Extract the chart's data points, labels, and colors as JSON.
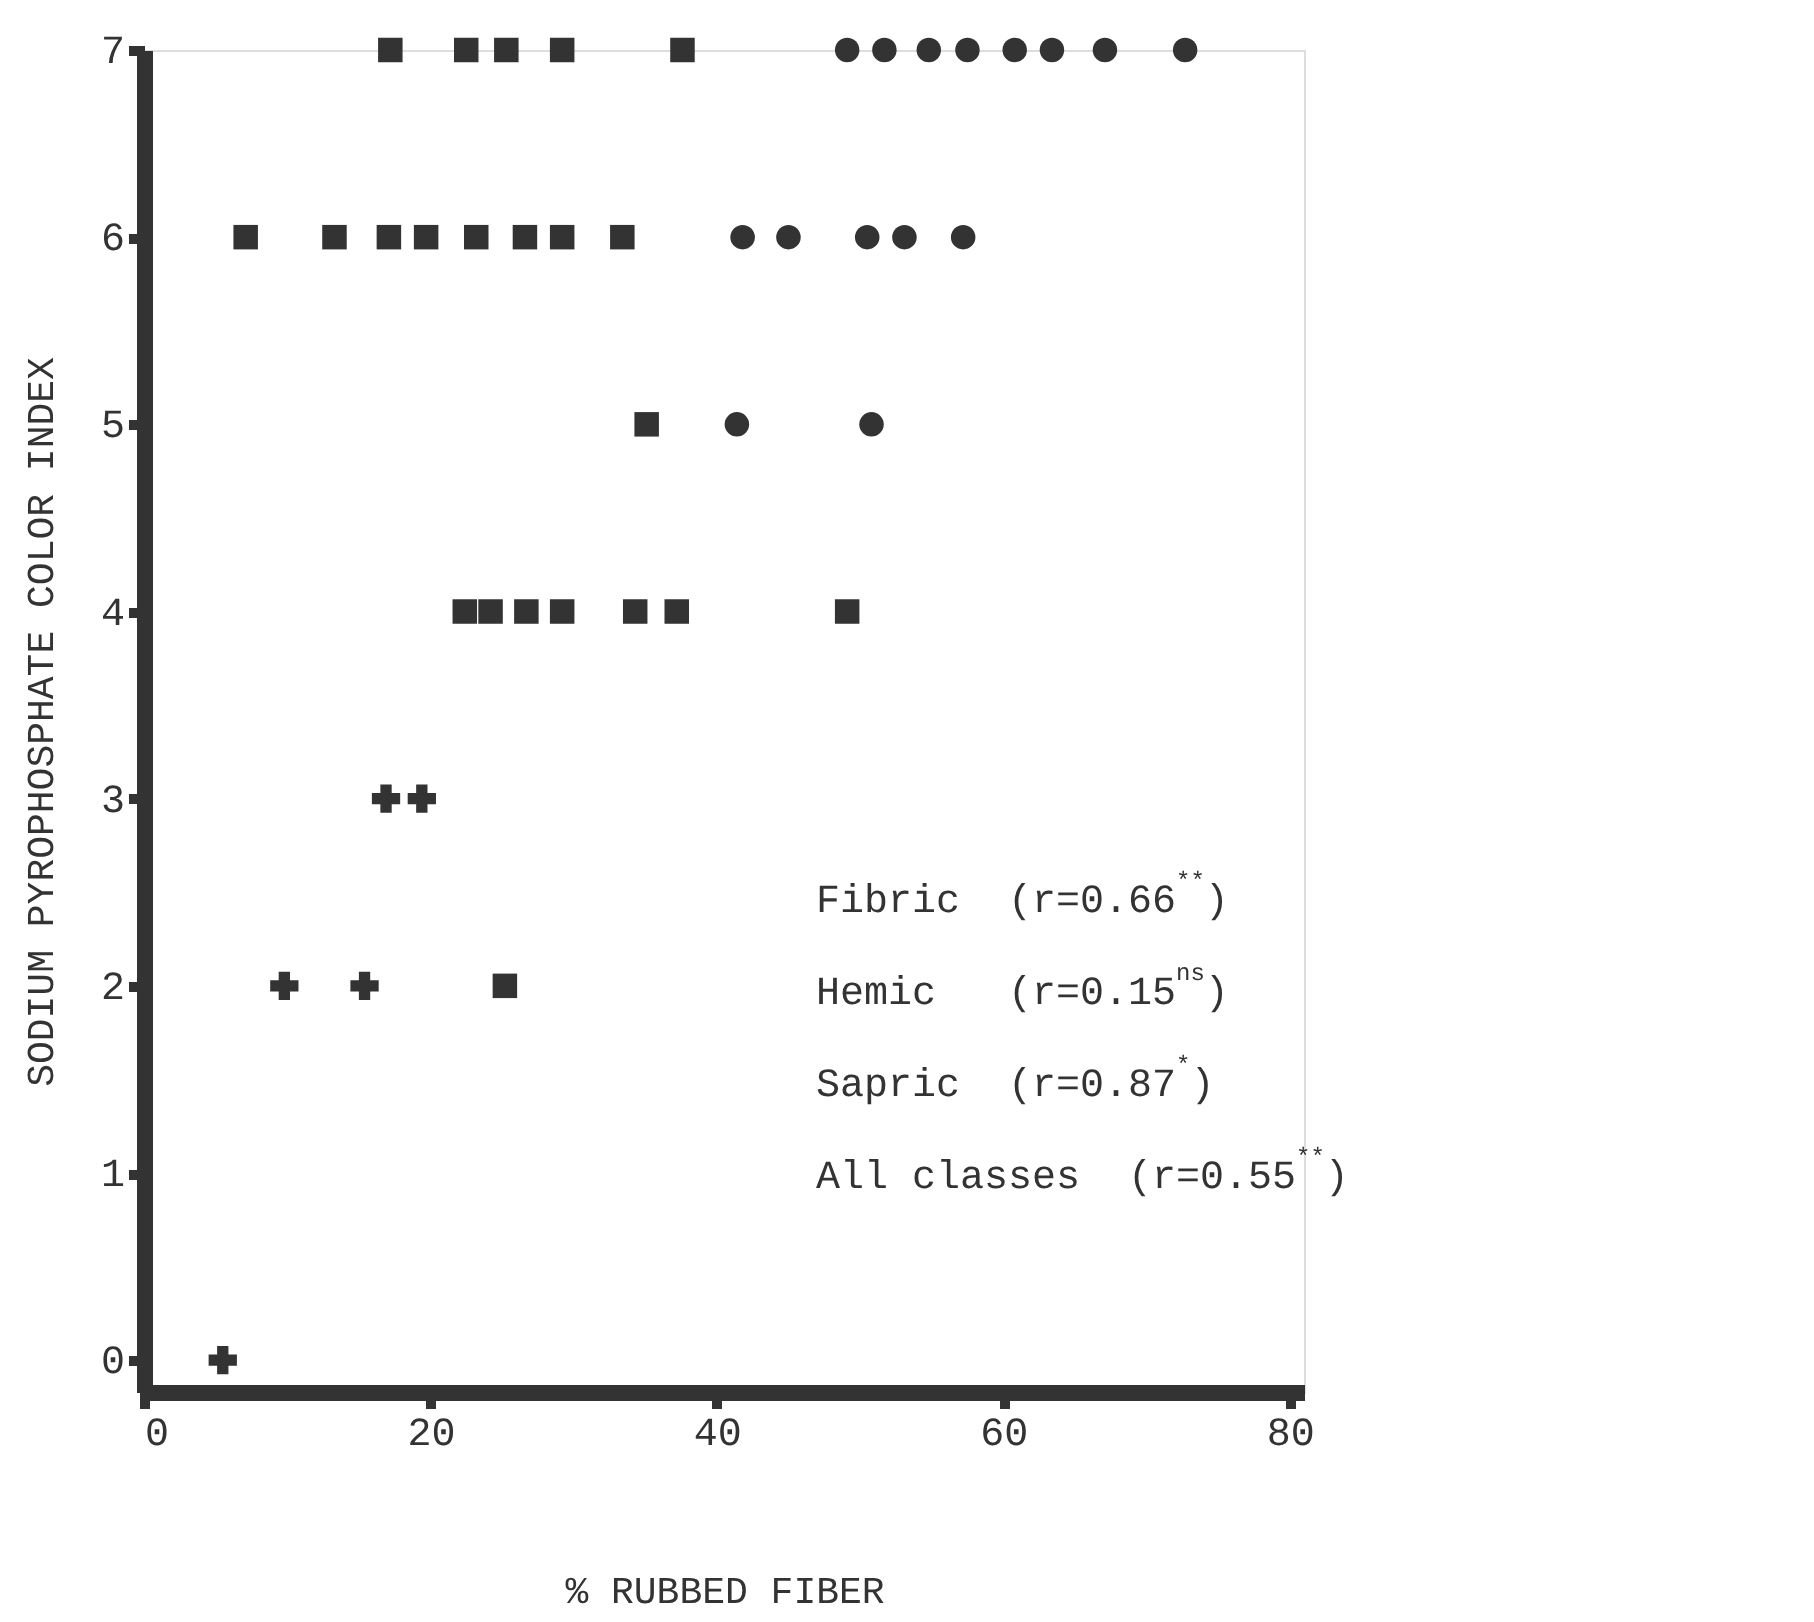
{
  "chart_data": {
    "type": "scatter",
    "xlabel": "% RUBBED FIBER",
    "ylabel": "SODIUM PYROPHOSPHATE COLOR INDEX",
    "xlim": [
      0,
      81
    ],
    "ylim": [
      -0.17,
      7
    ],
    "xticks": [
      0,
      20,
      40,
      60,
      80
    ],
    "yticks": [
      0,
      1,
      2,
      3,
      4,
      5,
      6,
      7
    ],
    "grid": false,
    "series": [
      {
        "color": "#333333",
        "marker": "circle",
        "x": [
          49.1,
          51.7,
          54.8,
          57.5,
          60.8,
          63.4,
          67.1,
          72.7,
          41.8,
          45.0,
          50.5,
          53.1,
          57.2,
          41.4,
          50.8
        ],
        "values": [
          7,
          7,
          7,
          7,
          7,
          7,
          7,
          7,
          6,
          6,
          6,
          6,
          6,
          5,
          5
        ]
      },
      {
        "color": "#333333",
        "marker": "square",
        "x": [
          17.2,
          22.5,
          25.3,
          29.2,
          37.6,
          7.1,
          13.3,
          17.1,
          19.7,
          23.2,
          26.6,
          29.2,
          33.4,
          35.1,
          22.4,
          24.2,
          26.7,
          29.2,
          34.3,
          37.2,
          49.1,
          25.2
        ],
        "values": [
          7,
          7,
          7,
          7,
          7,
          6,
          6,
          6,
          6,
          6,
          6,
          6,
          6,
          5,
          4,
          4,
          4,
          4,
          4,
          4,
          4,
          2
        ]
      },
      {
        "color": "#333333",
        "marker": "cross",
        "x": [
          16.9,
          19.4,
          9.8,
          15.4,
          5.5
        ],
        "values": [
          3,
          3,
          2,
          2,
          0
        ]
      }
    ],
    "annotations": [
      "Fibric  (r=0.66$^{**}$)",
      "Hemic   (r=0.15$^{ns}$)",
      "Sapric  (r=0.87$^{*}$)",
      "All classes  (r=0.55$^{**}$)"
    ]
  }
}
